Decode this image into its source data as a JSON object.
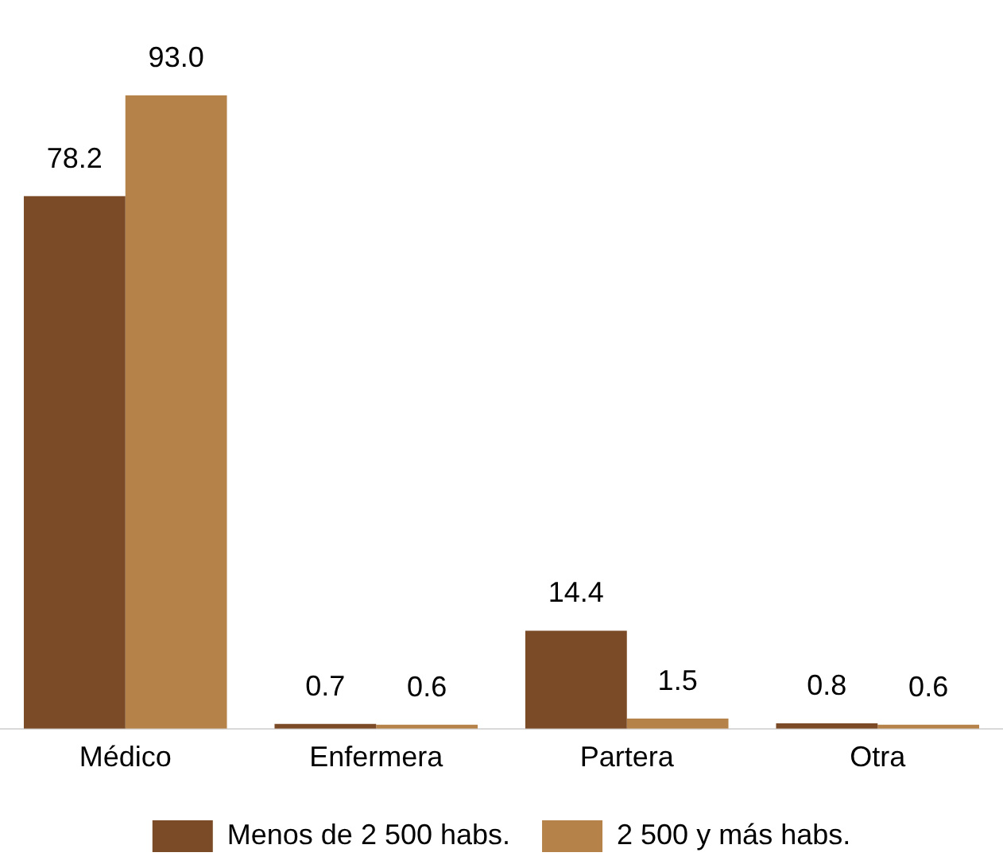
{
  "chart_data": {
    "type": "bar",
    "categories": [
      "Médico",
      "Enfermera",
      "Partera",
      "Otra"
    ],
    "series": [
      {
        "name": "Menos de 2 500 habs.",
        "color": "#7b4a26",
        "values": [
          78.2,
          0.7,
          14.4,
          0.8
        ],
        "value_labels": [
          "78.2",
          "0.7",
          "14.4",
          "0.8"
        ]
      },
      {
        "name": "2 500 y más habs.",
        "color": "#b5834a",
        "values": [
          93.0,
          0.6,
          1.5,
          0.6
        ],
        "value_labels": [
          "93.0",
          "0.6",
          "1.5",
          "0.6"
        ]
      }
    ],
    "tick_labels": "x",
    "grid": false,
    "legend": "bottom"
  }
}
